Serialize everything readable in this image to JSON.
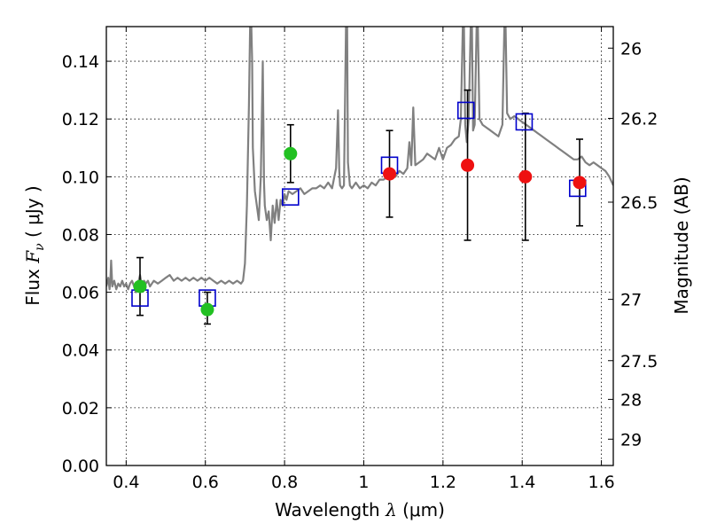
{
  "chart_data": {
    "type": "scatter",
    "title": "",
    "xlabel": {
      "prefix": "Wavelength  ",
      "symbol": "λ",
      "units": " (μm)"
    },
    "ylabel": {
      "prefix": "Flux  ",
      "symbol": "F",
      "subscript": "ν",
      "units": " ( μJy )"
    },
    "y2label": "Magnitude (AB)",
    "xlim": [
      0.35,
      1.63
    ],
    "ylim": [
      0.0,
      0.152
    ],
    "grid": true,
    "x_ticks": [
      {
        "value": 0.4,
        "label": "0.4"
      },
      {
        "value": 0.6,
        "label": "0.6"
      },
      {
        "value": 0.8,
        "label": "0.8"
      },
      {
        "value": 1.0,
        "label": "1"
      },
      {
        "value": 1.2,
        "label": "1.2"
      },
      {
        "value": 1.4,
        "label": "1.4"
      },
      {
        "value": 1.6,
        "label": "1.6"
      }
    ],
    "y_ticks": [
      {
        "value": 0.0,
        "label": "0.00"
      },
      {
        "value": 0.02,
        "label": "0.02"
      },
      {
        "value": 0.04,
        "label": "0.04"
      },
      {
        "value": 0.06,
        "label": "0.06"
      },
      {
        "value": 0.08,
        "label": "0.08"
      },
      {
        "value": 0.1,
        "label": "0.10"
      },
      {
        "value": 0.12,
        "label": "0.12"
      },
      {
        "value": 0.14,
        "label": "0.14"
      }
    ],
    "mag_ticks": [
      {
        "mag": 26.0,
        "label": "26"
      },
      {
        "mag": 26.2,
        "label": "26.2"
      },
      {
        "mag": 26.5,
        "label": "26.5"
      },
      {
        "mag": 27.0,
        "label": "27"
      },
      {
        "mag": 27.5,
        "label": "27.5"
      },
      {
        "mag": 28.0,
        "label": "28"
      },
      {
        "mag": 29.0,
        "label": "29"
      }
    ],
    "series": [
      {
        "kind": "line",
        "color": "#808080",
        "points": [
          [
            0.35,
            0.062
          ],
          [
            0.355,
            0.065
          ],
          [
            0.358,
            0.061
          ],
          [
            0.36,
            0.064
          ],
          [
            0.362,
            0.071
          ],
          [
            0.365,
            0.062
          ],
          [
            0.37,
            0.064
          ],
          [
            0.375,
            0.061
          ],
          [
            0.38,
            0.063
          ],
          [
            0.385,
            0.062
          ],
          [
            0.39,
            0.064
          ],
          [
            0.395,
            0.062
          ],
          [
            0.4,
            0.063
          ],
          [
            0.405,
            0.061
          ],
          [
            0.41,
            0.063
          ],
          [
            0.415,
            0.064
          ],
          [
            0.42,
            0.062
          ],
          [
            0.425,
            0.06
          ],
          [
            0.43,
            0.063
          ],
          [
            0.435,
            0.066
          ],
          [
            0.44,
            0.062
          ],
          [
            0.445,
            0.064
          ],
          [
            0.45,
            0.063
          ],
          [
            0.455,
            0.064
          ],
          [
            0.46,
            0.062
          ],
          [
            0.465,
            0.063
          ],
          [
            0.47,
            0.064
          ],
          [
            0.48,
            0.063
          ],
          [
            0.49,
            0.064
          ],
          [
            0.5,
            0.065
          ],
          [
            0.51,
            0.066
          ],
          [
            0.52,
            0.064
          ],
          [
            0.53,
            0.065
          ],
          [
            0.54,
            0.064
          ],
          [
            0.55,
            0.065
          ],
          [
            0.56,
            0.064
          ],
          [
            0.57,
            0.065
          ],
          [
            0.58,
            0.064
          ],
          [
            0.59,
            0.065
          ],
          [
            0.6,
            0.064
          ],
          [
            0.61,
            0.065
          ],
          [
            0.62,
            0.064
          ],
          [
            0.63,
            0.063
          ],
          [
            0.64,
            0.064
          ],
          [
            0.65,
            0.063
          ],
          [
            0.66,
            0.064
          ],
          [
            0.67,
            0.063
          ],
          [
            0.68,
            0.064
          ],
          [
            0.69,
            0.063
          ],
          [
            0.695,
            0.064
          ],
          [
            0.7,
            0.07
          ],
          [
            0.705,
            0.09
          ],
          [
            0.71,
            0.125
          ],
          [
            0.713,
            0.152
          ],
          [
            0.716,
            0.152
          ],
          [
            0.718,
            0.14
          ],
          [
            0.72,
            0.11
          ],
          [
            0.725,
            0.095
          ],
          [
            0.73,
            0.09
          ],
          [
            0.735,
            0.085
          ],
          [
            0.74,
            0.1
          ],
          [
            0.745,
            0.14
          ],
          [
            0.748,
            0.098
          ],
          [
            0.75,
            0.09
          ],
          [
            0.755,
            0.085
          ],
          [
            0.76,
            0.088
          ],
          [
            0.765,
            0.078
          ],
          [
            0.77,
            0.09
          ],
          [
            0.775,
            0.084
          ],
          [
            0.78,
            0.092
          ],
          [
            0.785,
            0.085
          ],
          [
            0.79,
            0.092
          ],
          [
            0.795,
            0.09
          ],
          [
            0.8,
            0.094
          ],
          [
            0.805,
            0.092
          ],
          [
            0.81,
            0.095
          ],
          [
            0.82,
            0.094
          ],
          [
            0.83,
            0.095
          ],
          [
            0.84,
            0.096
          ],
          [
            0.85,
            0.094
          ],
          [
            0.86,
            0.095
          ],
          [
            0.87,
            0.096
          ],
          [
            0.88,
            0.096
          ],
          [
            0.89,
            0.097
          ],
          [
            0.9,
            0.096
          ],
          [
            0.91,
            0.098
          ],
          [
            0.92,
            0.096
          ],
          [
            0.93,
            0.103
          ],
          [
            0.935,
            0.123
          ],
          [
            0.938,
            0.102
          ],
          [
            0.94,
            0.097
          ],
          [
            0.945,
            0.096
          ],
          [
            0.95,
            0.097
          ],
          [
            0.955,
            0.152
          ],
          [
            0.958,
            0.152
          ],
          [
            0.96,
            0.105
          ],
          [
            0.965,
            0.097
          ],
          [
            0.97,
            0.096
          ],
          [
            0.98,
            0.098
          ],
          [
            0.99,
            0.096
          ],
          [
            1.0,
            0.097
          ],
          [
            1.01,
            0.096
          ],
          [
            1.02,
            0.098
          ],
          [
            1.03,
            0.097
          ],
          [
            1.04,
            0.099
          ],
          [
            1.05,
            0.099
          ],
          [
            1.06,
            0.1
          ],
          [
            1.07,
            0.101
          ],
          [
            1.08,
            0.1
          ],
          [
            1.09,
            0.102
          ],
          [
            1.1,
            0.101
          ],
          [
            1.11,
            0.103
          ],
          [
            1.115,
            0.112
          ],
          [
            1.12,
            0.104
          ],
          [
            1.125,
            0.124
          ],
          [
            1.13,
            0.104
          ],
          [
            1.14,
            0.105
          ],
          [
            1.15,
            0.106
          ],
          [
            1.16,
            0.108
          ],
          [
            1.17,
            0.107
          ],
          [
            1.18,
            0.106
          ],
          [
            1.19,
            0.11
          ],
          [
            1.2,
            0.106
          ],
          [
            1.21,
            0.11
          ],
          [
            1.22,
            0.111
          ],
          [
            1.23,
            0.113
          ],
          [
            1.24,
            0.114
          ],
          [
            1.245,
            0.12
          ],
          [
            1.25,
            0.152
          ],
          [
            1.253,
            0.152
          ],
          [
            1.256,
            0.118
          ],
          [
            1.26,
            0.112
          ],
          [
            1.265,
            0.12
          ],
          [
            1.27,
            0.152
          ],
          [
            1.273,
            0.152
          ],
          [
            1.276,
            0.116
          ],
          [
            1.28,
            0.118
          ],
          [
            1.285,
            0.152
          ],
          [
            1.288,
            0.152
          ],
          [
            1.292,
            0.12
          ],
          [
            1.3,
            0.118
          ],
          [
            1.31,
            0.117
          ],
          [
            1.32,
            0.116
          ],
          [
            1.33,
            0.115
          ],
          [
            1.34,
            0.114
          ],
          [
            1.35,
            0.118
          ],
          [
            1.355,
            0.152
          ],
          [
            1.358,
            0.152
          ],
          [
            1.362,
            0.122
          ],
          [
            1.37,
            0.12
          ],
          [
            1.38,
            0.121
          ],
          [
            1.39,
            0.12
          ],
          [
            1.4,
            0.119
          ],
          [
            1.41,
            0.118
          ],
          [
            1.42,
            0.117
          ],
          [
            1.43,
            0.116
          ],
          [
            1.44,
            0.115
          ],
          [
            1.45,
            0.114
          ],
          [
            1.46,
            0.113
          ],
          [
            1.47,
            0.112
          ],
          [
            1.48,
            0.111
          ],
          [
            1.49,
            0.11
          ],
          [
            1.5,
            0.109
          ],
          [
            1.51,
            0.108
          ],
          [
            1.52,
            0.107
          ],
          [
            1.53,
            0.106
          ],
          [
            1.54,
            0.106
          ],
          [
            1.55,
            0.107
          ],
          [
            1.56,
            0.105
          ],
          [
            1.57,
            0.104
          ],
          [
            1.58,
            0.105
          ],
          [
            1.59,
            0.104
          ],
          [
            1.6,
            0.103
          ],
          [
            1.61,
            0.102
          ],
          [
            1.62,
            0.1
          ],
          [
            1.63,
            0.097
          ]
        ]
      },
      {
        "kind": "open-squares",
        "color": "#0000cc",
        "points": [
          {
            "x": 0.435,
            "y": 0.058
          },
          {
            "x": 0.605,
            "y": 0.058
          },
          {
            "x": 0.815,
            "y": 0.093
          },
          {
            "x": 1.065,
            "y": 0.104
          },
          {
            "x": 1.258,
            "y": 0.123
          },
          {
            "x": 1.405,
            "y": 0.119
          },
          {
            "x": 1.54,
            "y": 0.096
          }
        ]
      },
      {
        "kind": "points-with-errors",
        "points": [
          {
            "x": 0.435,
            "y": 0.062,
            "yerr_low": 0.052,
            "yerr_high": 0.072,
            "color": "#22c022"
          },
          {
            "x": 0.605,
            "y": 0.054,
            "yerr_low": 0.049,
            "yerr_high": 0.06,
            "color": "#22c022"
          },
          {
            "x": 0.815,
            "y": 0.108,
            "yerr_low": 0.098,
            "yerr_high": 0.118,
            "color": "#22c022"
          },
          {
            "x": 1.065,
            "y": 0.101,
            "yerr_low": 0.086,
            "yerr_high": 0.116,
            "color": "#ee1111"
          },
          {
            "x": 1.262,
            "y": 0.104,
            "yerr_low": 0.078,
            "yerr_high": 0.13,
            "color": "#ee1111"
          },
          {
            "x": 1.408,
            "y": 0.1,
            "yerr_low": 0.078,
            "yerr_high": 0.122,
            "color": "#ee1111"
          },
          {
            "x": 1.545,
            "y": 0.098,
            "yerr_low": 0.083,
            "yerr_high": 0.113,
            "color": "#ee1111"
          }
        ]
      }
    ]
  }
}
